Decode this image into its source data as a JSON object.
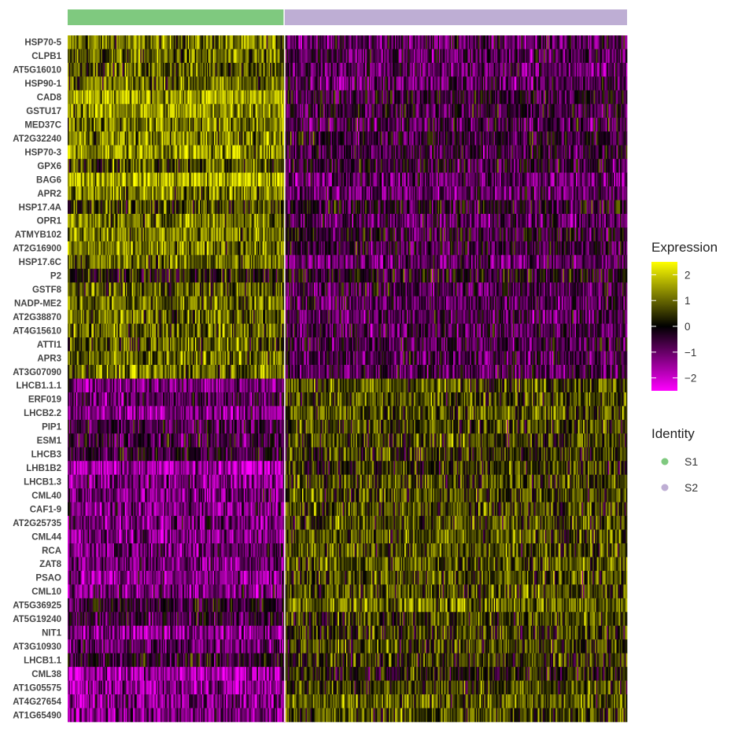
{
  "chart_data": {
    "type": "heatmap",
    "genes": [
      "HSP70-5",
      "CLPB1",
      "AT5G16010",
      "HSP90-1",
      "CAD8",
      "GSTU17",
      "MED37C",
      "AT2G32240",
      "HSP70-3",
      "GPX6",
      "BAG6",
      "APR2",
      "HSP17.4A",
      "OPR1",
      "ATMYB102",
      "AT2G16900",
      "HSP17.6C",
      "P2",
      "GSTF8",
      "NADP-ME2",
      "AT2G38870",
      "AT4G15610",
      "ATTI1",
      "APR3",
      "AT3G07090",
      "LHCB1.1.1",
      "ERF019",
      "LHCB2.2",
      "PIP1",
      "ESM1",
      "LHCB3",
      "LHB1B2",
      "LHCB1.3",
      "CML40",
      "CAF1-9",
      "AT2G25735",
      "CML44",
      "RCA",
      "ZAT8",
      "PSAO",
      "CML10",
      "AT5G36925",
      "AT5G19240",
      "NIT1",
      "AT3G10930",
      "LHCB1.1",
      "CML38",
      "AT1G05575",
      "AT4G27654",
      "AT1G65490"
    ],
    "groups": [
      {
        "name": "S1",
        "color": "#7fc97f",
        "fraction": 0.388
      },
      {
        "name": "S2",
        "color": "#beaed4",
        "fraction": 0.612
      }
    ],
    "mean_expression": {
      "S1": [
        1.1,
        0.9,
        0.9,
        1.0,
        1.6,
        1.5,
        1.2,
        1.3,
        1.5,
        0.9,
        1.8,
        1.2,
        0.6,
        1.2,
        1.3,
        1.1,
        1.0,
        0.2,
        0.8,
        1.0,
        1.1,
        1.0,
        0.9,
        1.0,
        1.1,
        -1.1,
        -0.9,
        -1.3,
        -0.6,
        -0.6,
        -0.4,
        -1.6,
        -1.2,
        -1.1,
        -1.2,
        -1.1,
        -1.2,
        -1.0,
        -1.1,
        -1.3,
        -1.2,
        -0.3,
        -0.5,
        -1.4,
        -0.9,
        -0.3,
        -1.6,
        -1.4,
        -1.1,
        -1.2
      ],
      "S2": [
        -0.8,
        -0.8,
        -0.9,
        -0.8,
        -0.4,
        -0.5,
        -0.7,
        -0.4,
        -0.5,
        -0.5,
        -0.9,
        -0.9,
        -0.3,
        -0.8,
        -0.3,
        -0.5,
        -0.9,
        -0.2,
        -0.6,
        -0.7,
        -0.8,
        -0.7,
        -0.6,
        -0.7,
        -0.7,
        0.8,
        0.7,
        0.8,
        0.6,
        0.6,
        0.5,
        0.4,
        0.6,
        0.7,
        0.6,
        0.7,
        0.8,
        0.7,
        0.8,
        0.7,
        0.7,
        1.1,
        0.6,
        0.5,
        0.6,
        0.4,
        0.2,
        0.6,
        0.8,
        0.7
      ]
    },
    "color_scale": {
      "low": "#ff00ff",
      "mid": "#000000",
      "high": "#ffff00",
      "range": [
        -2.5,
        2.5
      ],
      "ticks": [
        2,
        1,
        0,
        -1,
        -2
      ],
      "tick_labels": [
        "2",
        "1",
        "0",
        "−1",
        "−2"
      ]
    },
    "legend": {
      "expression_title": "Expression",
      "identity_title": "Identity",
      "placement": "right"
    }
  }
}
